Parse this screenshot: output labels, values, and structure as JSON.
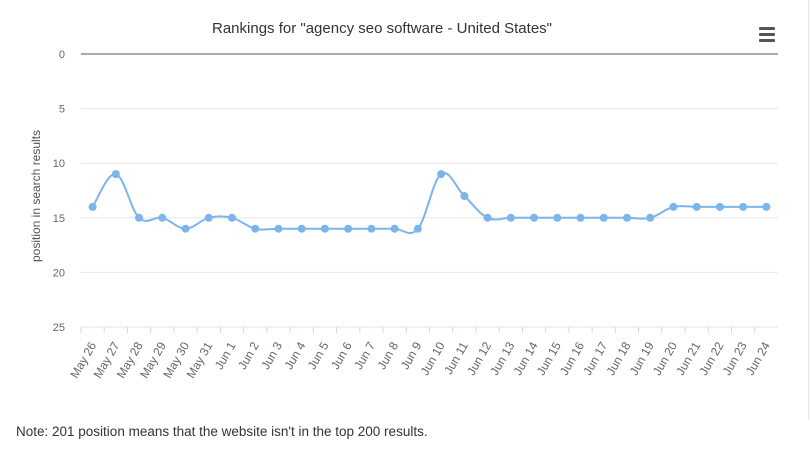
{
  "menu": {
    "icon": "hamburger-menu-icon"
  },
  "note": "Note: 201 position means that the website isn't in the top 200 results.",
  "chart_data": {
    "type": "line",
    "title": "Rankings for \"agency seo software - United States\"",
    "xlabel": "",
    "ylabel": "position in search results",
    "y_reversed": true,
    "ylim": [
      0,
      25
    ],
    "yticks": [
      0,
      5,
      10,
      15,
      20,
      25
    ],
    "grid": true,
    "line_color": "#7cb5ec",
    "categories": [
      "May 26",
      "May 27",
      "May 28",
      "May 29",
      "May 30",
      "May 31",
      "Jun 1",
      "Jun 2",
      "Jun 3",
      "Jun 4",
      "Jun 5",
      "Jun 6",
      "Jun 7",
      "Jun 8",
      "Jun 9",
      "Jun 10",
      "Jun 11",
      "Jun 12",
      "Jun 13",
      "Jun 14",
      "Jun 15",
      "Jun 16",
      "Jun 17",
      "Jun 18",
      "Jun 19",
      "Jun 20",
      "Jun 21",
      "Jun 22",
      "Jun 23",
      "Jun 24"
    ],
    "series": [
      {
        "values": [
          14,
          11,
          15,
          15,
          16,
          15,
          15,
          16,
          16,
          16,
          16,
          16,
          16,
          16,
          16,
          11,
          13,
          15,
          15,
          15,
          15,
          15,
          15,
          15,
          15,
          14,
          14,
          14,
          14,
          14
        ]
      }
    ]
  }
}
